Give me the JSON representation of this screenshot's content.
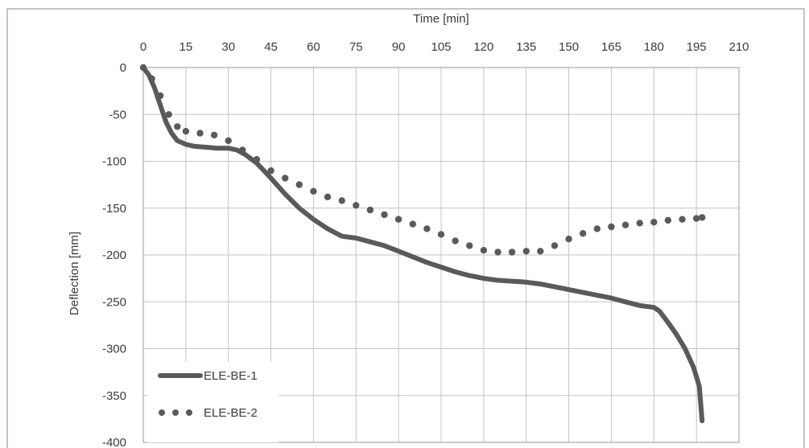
{
  "chart_data": {
    "type": "line",
    "xlabel": "Time [min]",
    "ylabel": "Deflection [mm]",
    "xlim": [
      0,
      210
    ],
    "ylim": [
      -400,
      0
    ],
    "x_ticks": [
      "0",
      "15",
      "30",
      "45",
      "60",
      "75",
      "90",
      "105",
      "120",
      "135",
      "150",
      "165",
      "180",
      "195",
      "210"
    ],
    "y_ticks": [
      "0",
      "-50",
      "-100",
      "-150",
      "-200",
      "-250",
      "-300",
      "-350",
      "-400"
    ],
    "x_axis_position": "top",
    "grid": true,
    "legend_position": "bottom-left",
    "colors": {
      "series": "#5a5a5a",
      "grid": "#c4c4c4",
      "text": "#3a3a3a"
    },
    "series": [
      {
        "name": "ELE-BE-1",
        "style": "solid",
        "x": [
          0,
          2,
          4,
          6,
          8,
          10,
          12,
          15,
          18,
          22,
          26,
          30,
          33,
          36,
          40,
          45,
          50,
          55,
          60,
          65,
          70,
          75,
          80,
          85,
          90,
          95,
          100,
          105,
          110,
          115,
          120,
          125,
          130,
          135,
          140,
          145,
          150,
          155,
          160,
          165,
          170,
          175,
          180,
          182,
          185,
          188,
          191,
          194,
          196,
          197
        ],
        "y": [
          0,
          -8,
          -22,
          -40,
          -58,
          -70,
          -78,
          -82,
          -84,
          -85,
          -86,
          -86,
          -88,
          -93,
          -102,
          -118,
          -135,
          -150,
          -162,
          -172,
          -180,
          -182,
          -186,
          -190,
          -196,
          -202,
          -208,
          -213,
          -218,
          -222,
          -225,
          -227,
          -228,
          -229,
          -231,
          -234,
          -237,
          -240,
          -243,
          -246,
          -250,
          -254,
          -256,
          -260,
          -272,
          -285,
          -300,
          -320,
          -340,
          -377
        ]
      },
      {
        "name": "ELE-BE-2",
        "style": "dotted",
        "x": [
          0,
          3,
          6,
          9,
          12,
          15,
          20,
          25,
          30,
          35,
          40,
          45,
          50,
          55,
          60,
          65,
          70,
          75,
          80,
          85,
          90,
          95,
          100,
          105,
          110,
          115,
          120,
          125,
          130,
          135,
          140,
          145,
          150,
          155,
          160,
          165,
          170,
          175,
          180,
          185,
          190,
          195,
          197
        ],
        "y": [
          0,
          -12,
          -30,
          -50,
          -63,
          -68,
          -70,
          -72,
          -78,
          -88,
          -98,
          -110,
          -118,
          -125,
          -132,
          -138,
          -142,
          -147,
          -152,
          -157,
          -162,
          -167,
          -172,
          -178,
          -185,
          -190,
          -195,
          -197,
          -197,
          -196,
          -196,
          -190,
          -183,
          -177,
          -172,
          -170,
          -168,
          -166,
          -165,
          -163,
          -162,
          -161,
          -160
        ]
      }
    ]
  }
}
